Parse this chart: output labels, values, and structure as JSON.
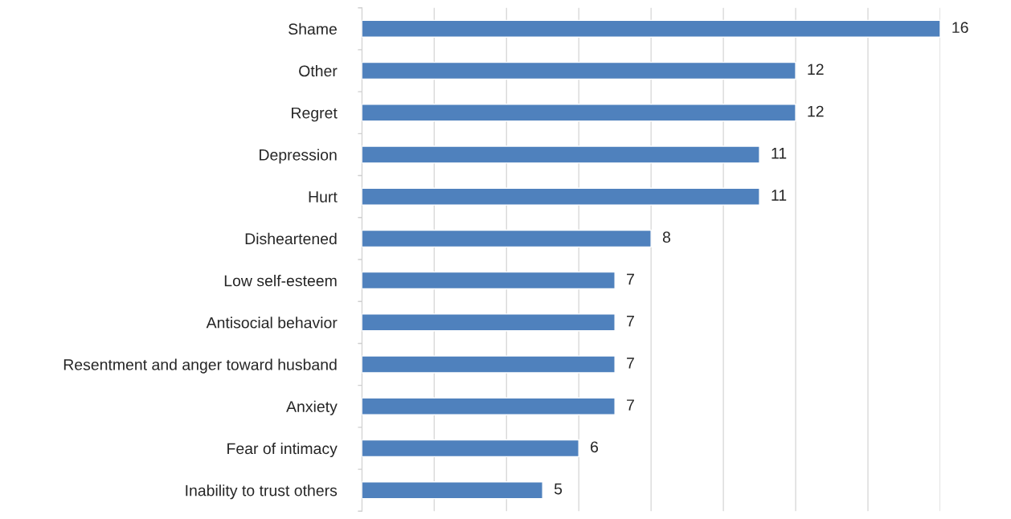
{
  "chart_data": {
    "type": "bar",
    "orientation": "horizontal",
    "categories": [
      "Shame",
      "Other",
      "Regret",
      "Depression",
      "Hurt",
      "Disheartened",
      "Low self-esteem",
      "Antisocial behavior",
      "Resentment and anger toward husband",
      "Anxiety",
      "Fear of intimacy",
      "Inability to trust others"
    ],
    "values": [
      16,
      12,
      12,
      11,
      11,
      8,
      7,
      7,
      7,
      7,
      6,
      5
    ],
    "color": "#4f81bd",
    "xlim": [
      0,
      16
    ],
    "xticks": [
      {
        "value": 0,
        "label": null
      },
      {
        "value": 2,
        "label": null
      },
      {
        "value": 4,
        "label": null
      },
      {
        "value": 6,
        "label": null
      },
      {
        "value": 8,
        "label": null
      },
      {
        "value": 10,
        "label": null
      },
      {
        "value": 12,
        "label": null
      },
      {
        "value": 14,
        "label": null
      },
      {
        "value": 16,
        "label": null
      }
    ],
    "grid": "x",
    "tick_labels": "y",
    "data_labels": true
  }
}
